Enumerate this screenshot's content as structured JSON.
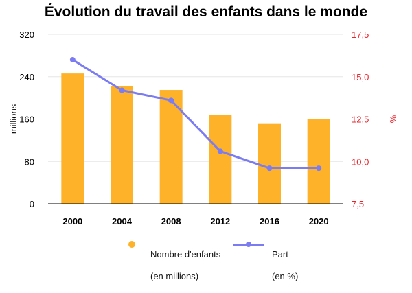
{
  "title": "Évolution du travail des enfants dans le monde",
  "colors": {
    "bar": "#FDB22A",
    "line": "#7B7CF1",
    "right_axis": "#E8242B",
    "grid": "#e6e6e6",
    "axis": "#000000"
  },
  "legend": {
    "bars": {
      "line1": "Nombre d'enfants",
      "line2": "(en millions)"
    },
    "line": {
      "line1": "Part",
      "line2": "(en %)"
    }
  },
  "chart_data": {
    "type": "bar",
    "title": "Évolution du travail des enfants dans le monde",
    "categories": [
      "2000",
      "2004",
      "2008",
      "2012",
      "2016",
      "2020"
    ],
    "series": [
      {
        "name": "Nombre d'enfants (en millions)",
        "type": "bar",
        "axis": "left",
        "values": [
          246,
          222,
          215,
          168,
          152,
          160
        ]
      },
      {
        "name": "Part (en %)",
        "type": "line",
        "axis": "right",
        "values": [
          16.0,
          14.2,
          13.6,
          10.6,
          9.6,
          9.6
        ]
      }
    ],
    "y_left": {
      "label": "millions",
      "ylim": [
        0,
        320
      ],
      "ticks": [
        "0",
        "80",
        "160",
        "240",
        "320"
      ]
    },
    "y_right": {
      "label": "%",
      "ylim": [
        7.5,
        17.5
      ],
      "ticks": [
        "7,5",
        "10,0",
        "12,5",
        "15,0",
        "17,5"
      ]
    },
    "grid": true,
    "legend_position": "bottom"
  }
}
